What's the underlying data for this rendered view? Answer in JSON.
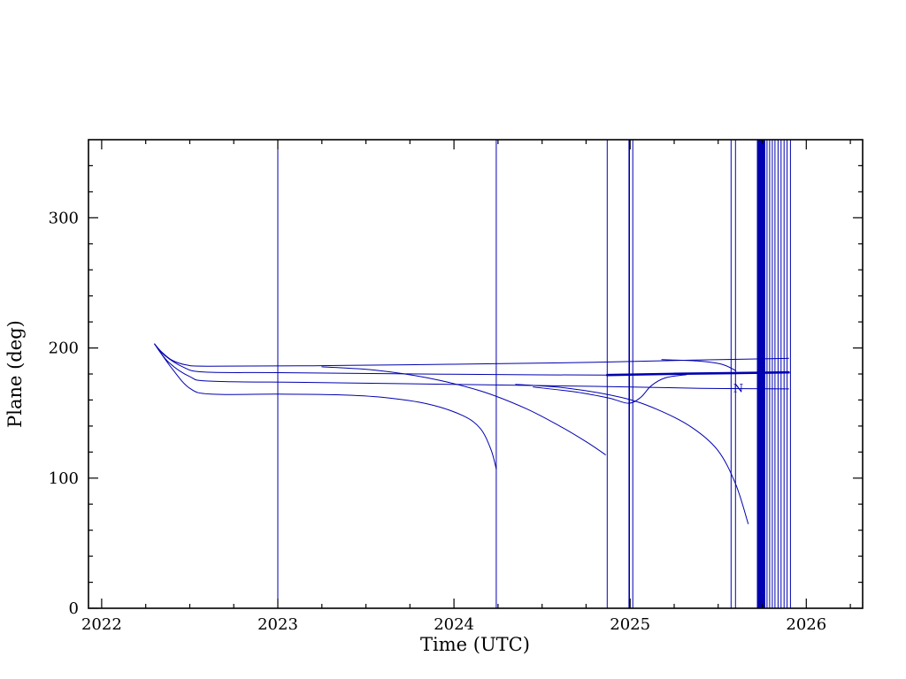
{
  "chart_data": {
    "type": "line",
    "title": "",
    "xlabel": "Time (UTC)",
    "ylabel": "Plane (deg)",
    "xlim": [
      2021.925,
      2026.32
    ],
    "ylim": [
      0,
      360
    ],
    "grid": false,
    "legend": "none",
    "axis_color": "#000000",
    "line_color": "#0000b0",
    "x_minor_step": 0.25,
    "y_minor_step": 20,
    "xticks": [
      {
        "value": 2022,
        "label": "2022"
      },
      {
        "value": 2023,
        "label": "2023"
      },
      {
        "value": 2024,
        "label": "2024"
      },
      {
        "value": 2025,
        "label": "2025"
      },
      {
        "value": 2026,
        "label": "2026"
      }
    ],
    "yticks": [
      {
        "value": 0,
        "label": "0"
      },
      {
        "value": 100,
        "label": "100"
      },
      {
        "value": 200,
        "label": "200"
      },
      {
        "value": 300,
        "label": "300"
      }
    ],
    "vertical_lines": [
      {
        "x": 2023.0,
        "w": 1
      },
      {
        "x": 2024.24,
        "w": 1
      },
      {
        "x": 2024.87,
        "w": 1
      },
      {
        "x": 2024.995,
        "w": 1.6
      },
      {
        "x": 2025.015,
        "w": 1
      },
      {
        "x": 2025.573,
        "w": 1
      },
      {
        "x": 2025.598,
        "w": 1
      },
      {
        "x": 2025.725,
        "w": 2
      },
      {
        "x": 2025.737,
        "w": 3
      },
      {
        "x": 2025.75,
        "w": 3
      },
      {
        "x": 2025.762,
        "w": 2
      },
      {
        "x": 2025.777,
        "w": 1
      },
      {
        "x": 2025.792,
        "w": 1
      },
      {
        "x": 2025.807,
        "w": 1
      },
      {
        "x": 2025.822,
        "w": 1
      },
      {
        "x": 2025.84,
        "w": 1
      },
      {
        "x": 2025.857,
        "w": 1
      },
      {
        "x": 2025.874,
        "w": 1
      },
      {
        "x": 2025.891,
        "w": 1
      },
      {
        "x": 2025.91,
        "w": 1
      }
    ],
    "series": [
      {
        "name": "track-1-top-plateau",
        "width": 1,
        "points": [
          [
            2022.3,
            203
          ],
          [
            2022.34,
            197
          ],
          [
            2022.4,
            190.5
          ],
          [
            2022.48,
            187
          ],
          [
            2022.6,
            186
          ],
          [
            2023.2,
            186.3
          ],
          [
            2024.0,
            187.5
          ],
          [
            2024.8,
            189
          ],
          [
            2025.4,
            190.8
          ],
          [
            2025.9,
            192
          ]
        ]
      },
      {
        "name": "track-2-mid-thin",
        "width": 1,
        "points": [
          [
            2022.3,
            203
          ],
          [
            2022.36,
            194
          ],
          [
            2022.46,
            185.5
          ],
          [
            2022.58,
            181.5
          ],
          [
            2023.0,
            181
          ],
          [
            2023.8,
            180
          ],
          [
            2024.5,
            179.3
          ],
          [
            2024.87,
            179.2
          ]
        ]
      },
      {
        "name": "track-2-mid-thick",
        "width": 2.6,
        "points": [
          [
            2024.87,
            179.2
          ],
          [
            2025.3,
            180.2
          ],
          [
            2025.9,
            181.2
          ]
        ]
      },
      {
        "name": "track-3-lower-plateau",
        "width": 1,
        "points": [
          [
            2022.3,
            203
          ],
          [
            2022.38,
            189
          ],
          [
            2022.5,
            178
          ],
          [
            2022.62,
            174.5
          ],
          [
            2023.2,
            173.5
          ],
          [
            2024.0,
            172
          ],
          [
            2024.8,
            170.5
          ],
          [
            2025.4,
            169
          ],
          [
            2025.9,
            168.5
          ]
        ]
      },
      {
        "name": "track-4-decay-2024.2",
        "width": 1,
        "points": [
          [
            2022.3,
            203
          ],
          [
            2022.4,
            184
          ],
          [
            2022.5,
            169
          ],
          [
            2022.62,
            164.5
          ],
          [
            2023.0,
            164.5
          ],
          [
            2023.35,
            164
          ],
          [
            2023.6,
            162
          ],
          [
            2023.85,
            157
          ],
          [
            2024.05,
            148
          ],
          [
            2024.15,
            138
          ],
          [
            2024.21,
            122
          ],
          [
            2024.24,
            107
          ]
        ]
      },
      {
        "name": "track-5-decay-2024.9",
        "width": 1,
        "points": [
          [
            2023.25,
            185.5
          ],
          [
            2023.55,
            183
          ],
          [
            2023.85,
            177
          ],
          [
            2024.15,
            167
          ],
          [
            2024.4,
            154
          ],
          [
            2024.6,
            140
          ],
          [
            2024.75,
            128
          ],
          [
            2024.86,
            118
          ]
        ]
      },
      {
        "name": "track-6-decay-2025.7",
        "width": 1,
        "points": [
          [
            2024.35,
            172
          ],
          [
            2024.65,
            169
          ],
          [
            2024.95,
            162
          ],
          [
            2025.15,
            153
          ],
          [
            2025.35,
            139
          ],
          [
            2025.5,
            121
          ],
          [
            2025.6,
            95
          ],
          [
            2025.67,
            65
          ]
        ]
      },
      {
        "name": "track-7-dip-recover",
        "width": 1,
        "points": [
          [
            2024.45,
            170
          ],
          [
            2024.7,
            166
          ],
          [
            2024.88,
            161.5
          ],
          [
            2024.99,
            157.5
          ],
          [
            2025.06,
            162
          ],
          [
            2025.12,
            171
          ],
          [
            2025.2,
            177
          ],
          [
            2025.32,
            179.5
          ]
        ]
      },
      {
        "name": "track-8-arc",
        "width": 1,
        "points": [
          [
            2025.18,
            191
          ],
          [
            2025.38,
            190
          ],
          [
            2025.52,
            187.5
          ],
          [
            2025.6,
            182.5
          ]
        ]
      }
    ],
    "annotations": [
      {
        "text": "N",
        "x": 2025.585,
        "y": 166
      }
    ]
  }
}
